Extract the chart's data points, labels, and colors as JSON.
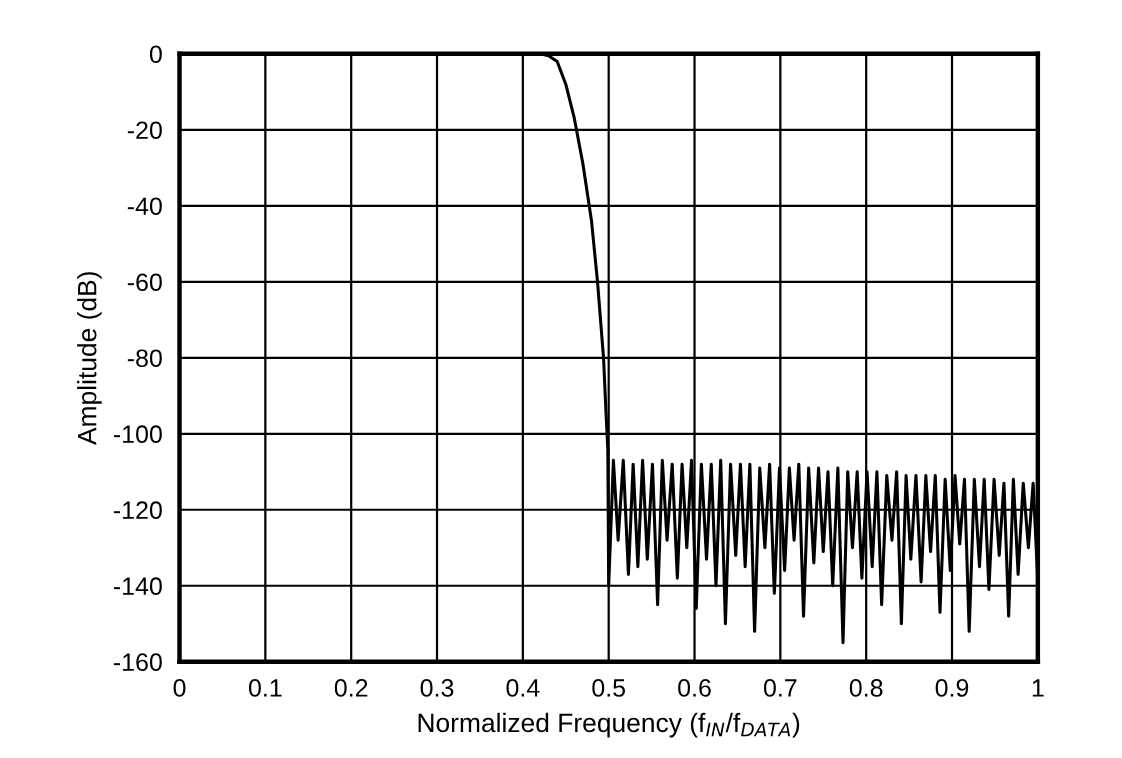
{
  "chart_data": {
    "type": "line",
    "xlabel": "Normalized Frequency (f$_{IN}$/f$_{DATA}$)",
    "ylabel": "Amplitude (dB)",
    "xlim": [
      0,
      1
    ],
    "ylim": [
      -160,
      0
    ],
    "xticks": [
      0,
      0.1,
      0.2,
      0.3,
      0.4,
      0.5,
      0.6,
      0.7,
      0.8,
      0.9,
      1
    ],
    "yticks": [
      0,
      -20,
      -40,
      -60,
      -80,
      -100,
      -120,
      -140,
      -160
    ],
    "grid": true,
    "marker": "none",
    "line_style": "solid",
    "series": [
      {
        "color": "#000000",
        "x": [
          0,
          0.1,
          0.2,
          0.3,
          0.4,
          0.42,
          0.43,
          0.44,
          0.45,
          0.46,
          0.47,
          0.48,
          0.487,
          0.494,
          0.497,
          0.499,
          0.5,
          0.5055,
          0.511,
          0.517,
          0.523,
          0.5285,
          0.534,
          0.5395,
          0.545,
          0.551,
          0.557,
          0.5625,
          0.568,
          0.574,
          0.58,
          0.5855,
          0.591,
          0.5965,
          0.602,
          0.608,
          0.614,
          0.6195,
          0.625,
          0.6305,
          0.636,
          0.642,
          0.648,
          0.6535,
          0.659,
          0.6645,
          0.67,
          0.676,
          0.682,
          0.6875,
          0.693,
          0.699,
          0.705,
          0.7105,
          0.716,
          0.7215,
          0.727,
          0.733,
          0.739,
          0.7445,
          0.75,
          0.7555,
          0.761,
          0.767,
          0.773,
          0.7785,
          0.784,
          0.7895,
          0.795,
          0.801,
          0.807,
          0.8125,
          0.818,
          0.824,
          0.83,
          0.8355,
          0.841,
          0.8465,
          0.852,
          0.858,
          0.864,
          0.8695,
          0.875,
          0.8805,
          0.886,
          0.892,
          0.898,
          0.9035,
          0.909,
          0.9145,
          0.92,
          0.926,
          0.932,
          0.9375,
          0.943,
          0.949,
          0.955,
          0.9605,
          0.966,
          0.9715,
          0.977,
          0.983,
          0.989,
          0.9945,
          1.0
        ],
        "values": [
          0,
          0,
          0,
          0,
          0,
          0,
          -0.5,
          -2,
          -8,
          -17,
          -29,
          -44,
          -60,
          -80,
          -95,
          -104,
          -140,
          -107,
          -128,
          -107,
          -137,
          -108,
          -135,
          -107,
          -133,
          -108,
          -145,
          -107,
          -128,
          -108,
          -138,
          -108,
          -130,
          -107,
          -146,
          -108,
          -133,
          -108,
          -140,
          -107,
          -150,
          -108,
          -132,
          -108,
          -135,
          -108,
          -152,
          -109,
          -130,
          -108,
          -142,
          -109,
          -136,
          -109,
          -128,
          -108,
          -148,
          -109,
          -134,
          -109,
          -131,
          -110,
          -140,
          -109,
          -155,
          -110,
          -130,
          -110,
          -138,
          -110,
          -135,
          -110,
          -145,
          -111,
          -128,
          -110,
          -150,
          -111,
          -133,
          -111,
          -139,
          -111,
          -131,
          -111,
          -147,
          -112,
          -136,
          -111,
          -129,
          -112,
          -152,
          -112,
          -135,
          -112,
          -141,
          -112,
          -132,
          -113,
          -148,
          -112,
          -137,
          -113,
          -130,
          -113,
          -139
        ]
      }
    ]
  }
}
